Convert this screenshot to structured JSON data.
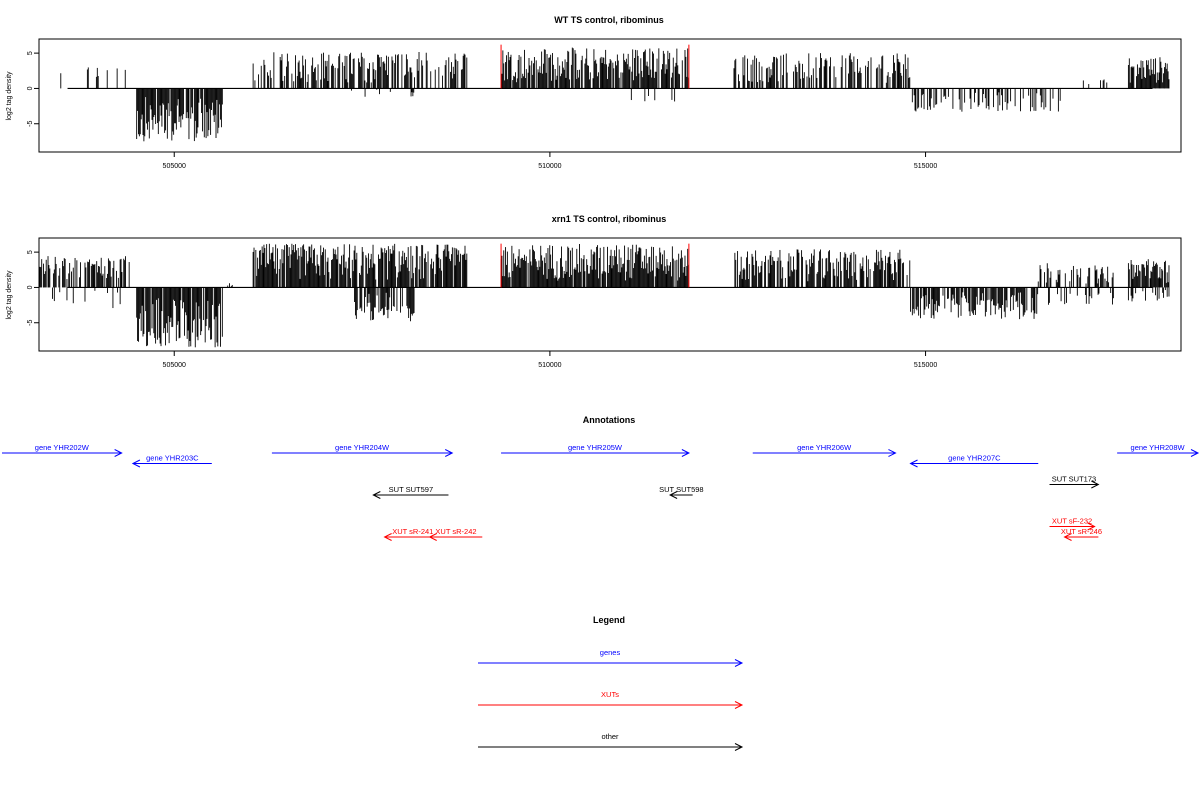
{
  "chart_data": [
    {
      "type": "bar",
      "title": "WT TS control, ribominus",
      "ylabel": "log2 tag density",
      "xlim": [
        503200,
        518400
      ],
      "ylim": [
        -9,
        7
      ],
      "yticks": [
        -5,
        0,
        5
      ],
      "xticks": [
        505000,
        510000,
        515000
      ],
      "marker_color": "#ff0000",
      "markers": [
        {
          "x": 509350,
          "y": 6.2
        },
        {
          "x": 511850,
          "y": 6.2
        }
      ],
      "regions": [
        {
          "start": 503250,
          "end": 503650,
          "dir": 1,
          "max": 3.5,
          "density": 0.12
        },
        {
          "start": 503700,
          "end": 504400,
          "dir": 1,
          "max": 3.8,
          "density": 0.2
        },
        {
          "start": 504500,
          "end": 505650,
          "dir": -1,
          "max": 7.5,
          "density": 0.9
        },
        {
          "start": 506050,
          "end": 508900,
          "dir": 1,
          "max": 5.2,
          "density": 0.6
        },
        {
          "start": 507300,
          "end": 508200,
          "dir": -1,
          "max": 1.2,
          "density": 0.1
        },
        {
          "start": 509350,
          "end": 511850,
          "dir": 1,
          "max": 5.8,
          "density": 0.85
        },
        {
          "start": 511000,
          "end": 511800,
          "dir": -1,
          "max": 2.5,
          "density": 0.05
        },
        {
          "start": 512450,
          "end": 514800,
          "dir": 1,
          "max": 5.0,
          "density": 0.6
        },
        {
          "start": 514800,
          "end": 516800,
          "dir": -1,
          "max": 3.3,
          "density": 0.35
        },
        {
          "start": 517100,
          "end": 517600,
          "dir": 1,
          "max": 1.8,
          "density": 0.15
        },
        {
          "start": 517700,
          "end": 518250,
          "dir": 1,
          "max": 4.5,
          "density": 0.9
        }
      ]
    },
    {
      "type": "bar",
      "title": "xrn1 TS control, ribominus",
      "ylabel": "log2 tag density",
      "xlim": [
        503200,
        518400
      ],
      "ylim": [
        -9,
        7
      ],
      "yticks": [
        -5,
        0,
        5
      ],
      "xticks": [
        505000,
        510000,
        515000
      ],
      "marker_color": "#ff0000",
      "markers": [
        {
          "x": 509350,
          "y": 6.2
        },
        {
          "x": 511850,
          "y": 6.2
        }
      ],
      "regions": [
        {
          "start": 503200,
          "end": 504400,
          "dir": 1,
          "max": 4.5,
          "density": 0.6
        },
        {
          "start": 503200,
          "end": 504300,
          "dir": -1,
          "max": 3.0,
          "density": 0.1
        },
        {
          "start": 504500,
          "end": 505650,
          "dir": -1,
          "max": 8.6,
          "density": 0.95
        },
        {
          "start": 505700,
          "end": 505800,
          "dir": 1,
          "max": 0.6,
          "density": 0.5
        },
        {
          "start": 506050,
          "end": 508900,
          "dir": 1,
          "max": 6.2,
          "density": 0.9
        },
        {
          "start": 507400,
          "end": 508200,
          "dir": -1,
          "max": 4.8,
          "density": 0.6
        },
        {
          "start": 509350,
          "end": 511850,
          "dir": 1,
          "max": 6.2,
          "density": 0.95
        },
        {
          "start": 512450,
          "end": 514800,
          "dir": 1,
          "max": 5.4,
          "density": 0.8
        },
        {
          "start": 514800,
          "end": 516500,
          "dir": -1,
          "max": 4.5,
          "density": 0.7
        },
        {
          "start": 516500,
          "end": 517500,
          "dir": 1,
          "max": 3.5,
          "density": 0.6
        },
        {
          "start": 516600,
          "end": 517500,
          "dir": -1,
          "max": 2.5,
          "density": 0.2
        },
        {
          "start": 517700,
          "end": 518250,
          "dir": 1,
          "max": 4.0,
          "density": 0.9
        },
        {
          "start": 517700,
          "end": 518250,
          "dir": -1,
          "max": 2.0,
          "density": 0.3
        }
      ]
    }
  ],
  "annotations": {
    "title": "Annotations",
    "items": [
      {
        "label": "gene YHR202W",
        "start": 502650,
        "end": 504300,
        "row": 0,
        "color": "#0000ff"
      },
      {
        "label": "gene YHR203C",
        "start": 505500,
        "end": 504450,
        "row": 1,
        "color": "#0000ff"
      },
      {
        "label": "gene YHR204W",
        "start": 506300,
        "end": 508700,
        "row": 0,
        "color": "#0000ff"
      },
      {
        "label": "gene YHR205W",
        "start": 509350,
        "end": 511850,
        "row": 0,
        "color": "#0000ff"
      },
      {
        "label": "gene YHR206W",
        "start": 512700,
        "end": 514600,
        "row": 0,
        "color": "#0000ff"
      },
      {
        "label": "gene YHR207C",
        "start": 516500,
        "end": 514800,
        "row": 1,
        "color": "#0000ff"
      },
      {
        "label": "gene YHR208W",
        "start": 517550,
        "end": 518750,
        "row": 0,
        "color": "#0000ff"
      },
      {
        "label": "SUT SUT597",
        "start": 508650,
        "end": 507650,
        "row": 4,
        "color": "#000000"
      },
      {
        "label": "SUT SUT598",
        "start": 511900,
        "end": 511600,
        "row": 4,
        "color": "#000000"
      },
      {
        "label": "SUT SUT173",
        "start": 516650,
        "end": 517300,
        "row": 3,
        "color": "#000000"
      },
      {
        "label": "XUT sR-241",
        "start": 508550,
        "end": 507800,
        "row": 8,
        "color": "#ff0000"
      },
      {
        "label": "XUT sR-242",
        "start": 509100,
        "end": 508400,
        "row": 8,
        "color": "#ff0000"
      },
      {
        "label": "XUT sF-232",
        "start": 516650,
        "end": 517250,
        "row": 7,
        "color": "#ff0000"
      },
      {
        "label": "XUT sR-246",
        "start": 517300,
        "end": 516850,
        "row": 8,
        "color": "#ff0000"
      }
    ]
  },
  "legend": {
    "title": "Legend",
    "items": [
      {
        "label": "genes",
        "color": "#0000ff"
      },
      {
        "label": "XUTs",
        "color": "#ff0000"
      },
      {
        "label": "other",
        "color": "#000000"
      }
    ]
  }
}
